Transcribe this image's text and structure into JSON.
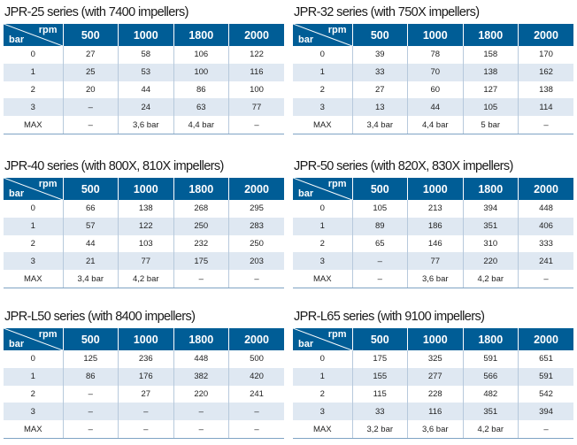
{
  "header": {
    "rpm_label": "rpm",
    "bar_label": "bar"
  },
  "tables": [
    {
      "title": "JPR-25 series (with 7400 impellers)",
      "columns": [
        "500",
        "1000",
        "1800",
        "2000"
      ],
      "rows": [
        [
          "0",
          "27",
          "58",
          "106",
          "122"
        ],
        [
          "1",
          "25",
          "53",
          "100",
          "116"
        ],
        [
          "2",
          "20",
          "44",
          "86",
          "100"
        ],
        [
          "3",
          "–",
          "24",
          "63",
          "77"
        ],
        [
          "MAX",
          "–",
          "3,6 bar",
          "4,4 bar",
          "–"
        ]
      ]
    },
    {
      "title": "JPR-32 series (with 750X impellers)",
      "columns": [
        "500",
        "1000",
        "1800",
        "2000"
      ],
      "rows": [
        [
          "0",
          "39",
          "78",
          "158",
          "170"
        ],
        [
          "1",
          "33",
          "70",
          "138",
          "162"
        ],
        [
          "2",
          "27",
          "60",
          "127",
          "138"
        ],
        [
          "3",
          "13",
          "44",
          "105",
          "114"
        ],
        [
          "MAX",
          "3,4 bar",
          "4,4 bar",
          "5 bar",
          "–"
        ]
      ]
    },
    {
      "title": "JPR-40 series (with 800X, 810X impellers)",
      "columns": [
        "500",
        "1000",
        "1800",
        "2000"
      ],
      "rows": [
        [
          "0",
          "66",
          "138",
          "268",
          "295"
        ],
        [
          "1",
          "57",
          "122",
          "250",
          "283"
        ],
        [
          "2",
          "44",
          "103",
          "232",
          "250"
        ],
        [
          "3",
          "21",
          "77",
          "175",
          "203"
        ],
        [
          "MAX",
          "3,4 bar",
          "4,2 bar",
          "–",
          "–"
        ]
      ]
    },
    {
      "title": "JPR-50 series (with 820X, 830X impellers)",
      "columns": [
        "500",
        "1000",
        "1800",
        "2000"
      ],
      "rows": [
        [
          "0",
          "105",
          "213",
          "394",
          "448"
        ],
        [
          "1",
          "89",
          "186",
          "351",
          "406"
        ],
        [
          "2",
          "65",
          "146",
          "310",
          "333"
        ],
        [
          "3",
          "–",
          "77",
          "220",
          "241"
        ],
        [
          "MAX",
          "–",
          "3,6 bar",
          "4,2 bar",
          "–"
        ]
      ]
    },
    {
      "title": "JPR-L50 series (with 8400 impellers)",
      "columns": [
        "500",
        "1000",
        "1800",
        "2000"
      ],
      "rows": [
        [
          "0",
          "125",
          "236",
          "448",
          "500"
        ],
        [
          "1",
          "86",
          "176",
          "382",
          "420"
        ],
        [
          "2",
          "–",
          "27",
          "220",
          "241"
        ],
        [
          "3",
          "–",
          "–",
          "–",
          "–"
        ],
        [
          "MAX",
          "–",
          "–",
          "–",
          "–"
        ]
      ]
    },
    {
      "title": "JPR-L65 series (with 9100 impellers)",
      "columns": [
        "500",
        "1000",
        "1800",
        "2000"
      ],
      "rows": [
        [
          "0",
          "175",
          "325",
          "591",
          "651"
        ],
        [
          "1",
          "155",
          "277",
          "566",
          "591"
        ],
        [
          "2",
          "115",
          "228",
          "482",
          "542"
        ],
        [
          "3",
          "33",
          "116",
          "351",
          "394"
        ],
        [
          "MAX",
          "3,2 bar",
          "3,6 bar",
          "4,2 bar",
          "–"
        ]
      ]
    }
  ]
}
